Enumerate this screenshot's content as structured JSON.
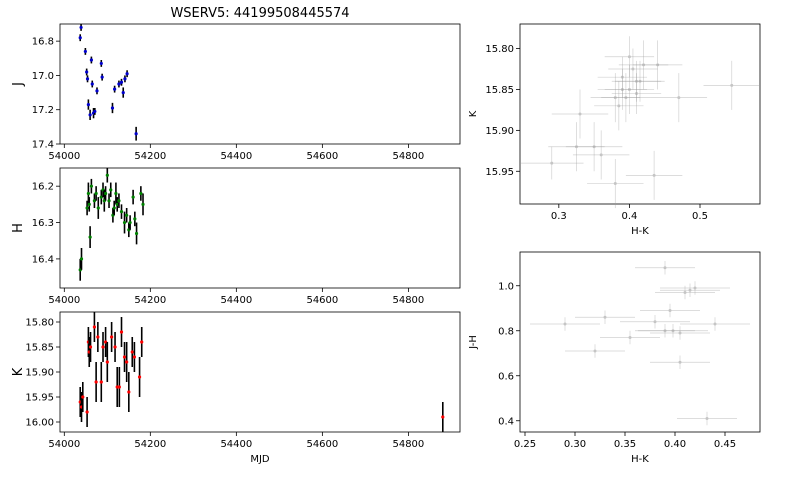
{
  "figure": {
    "title": "WSERV5: 44199508445574"
  },
  "chart_data": [
    {
      "id": "j_lc",
      "type": "scatter",
      "ylabel": "J",
      "xlabel": "",
      "color": "#0000cc",
      "xlim": [
        53990,
        54920
      ],
      "ylim": [
        17.4,
        16.7
      ],
      "y_inverted": true,
      "xticks": [
        54000,
        54200,
        54400,
        54600,
        54800
      ],
      "yticks": [
        16.8,
        17.0,
        17.2,
        17.4
      ],
      "x": [
        54039,
        54037,
        54049,
        54052,
        54054,
        54056,
        54060,
        54063,
        54065,
        54068,
        54071,
        54076,
        54086,
        54088,
        54112,
        54117,
        54127,
        54133,
        54137,
        54141,
        54146,
        54167
      ],
      "y": [
        16.72,
        16.78,
        16.86,
        16.98,
        17.02,
        17.17,
        17.23,
        16.91,
        17.05,
        17.22,
        17.21,
        17.09,
        16.93,
        17.01,
        17.19,
        17.08,
        17.05,
        17.04,
        17.1,
        17.02,
        16.99,
        17.34
      ],
      "yerr": [
        0.02,
        0.02,
        0.02,
        0.02,
        0.02,
        0.03,
        0.03,
        0.02,
        0.02,
        0.03,
        0.02,
        0.02,
        0.02,
        0.02,
        0.03,
        0.02,
        0.02,
        0.02,
        0.03,
        0.02,
        0.02,
        0.04
      ]
    },
    {
      "id": "h_lc",
      "type": "scatter",
      "ylabel": "H",
      "xlabel": "",
      "color": "#008000",
      "xlim": [
        53990,
        54920
      ],
      "ylim": [
        16.48,
        16.15
      ],
      "y_inverted": true,
      "xticks": [
        54000,
        54200,
        54400,
        54600,
        54800
      ],
      "yticks": [
        16.2,
        16.3,
        16.4
      ],
      "x": [
        54037,
        54040,
        54053,
        54056,
        54058,
        54060,
        54063,
        54070,
        54074,
        54079,
        54086,
        54090,
        54093,
        54096,
        54100,
        54104,
        54108,
        54113,
        54116,
        54120,
        54123,
        54127,
        54133,
        54140,
        54145,
        54150,
        54153,
        54160,
        54164,
        54168,
        54178,
        54183
      ],
      "y": [
        16.43,
        16.4,
        16.26,
        16.22,
        16.25,
        16.34,
        16.2,
        16.24,
        16.22,
        16.26,
        16.23,
        16.21,
        16.24,
        16.22,
        16.17,
        16.24,
        16.21,
        16.28,
        16.26,
        16.22,
        16.25,
        16.24,
        16.27,
        16.3,
        16.28,
        16.32,
        16.3,
        16.23,
        16.29,
        16.33,
        16.22,
        16.25
      ],
      "yerr": [
        0.03,
        0.03,
        0.02,
        0.03,
        0.02,
        0.03,
        0.02,
        0.02,
        0.02,
        0.03,
        0.02,
        0.02,
        0.03,
        0.02,
        0.02,
        0.02,
        0.02,
        0.02,
        0.02,
        0.03,
        0.02,
        0.02,
        0.02,
        0.03,
        0.02,
        0.02,
        0.02,
        0.02,
        0.02,
        0.03,
        0.02,
        0.03
      ]
    },
    {
      "id": "k_lc",
      "type": "scatter",
      "ylabel": "K",
      "xlabel": "MJD",
      "color": "#ff0000",
      "xlim": [
        53990,
        54920
      ],
      "ylim": [
        16.02,
        15.78
      ],
      "y_inverted": true,
      "xticks": [
        54000,
        54200,
        54400,
        54600,
        54800
      ],
      "yticks": [
        15.8,
        15.85,
        15.9,
        15.95,
        16.0
      ],
      "x": [
        54037,
        54040,
        54043,
        54053,
        54056,
        54058,
        54061,
        54070,
        54074,
        54078,
        54086,
        54090,
        54096,
        54100,
        54110,
        54118,
        54123,
        54128,
        54133,
        54140,
        54145,
        54150,
        54158,
        54163,
        54175,
        54180,
        54880
      ],
      "y": [
        15.96,
        15.97,
        15.95,
        15.98,
        15.84,
        15.86,
        15.85,
        15.81,
        15.92,
        15.83,
        15.92,
        15.85,
        15.84,
        15.88,
        15.83,
        15.85,
        15.93,
        15.93,
        15.82,
        15.87,
        15.88,
        15.94,
        15.86,
        15.87,
        15.91,
        15.84,
        15.99
      ],
      "yerr": [
        0.03,
        0.03,
        0.03,
        0.03,
        0.03,
        0.03,
        0.03,
        0.03,
        0.04,
        0.03,
        0.04,
        0.03,
        0.03,
        0.04,
        0.03,
        0.03,
        0.04,
        0.04,
        0.03,
        0.03,
        0.04,
        0.04,
        0.03,
        0.03,
        0.04,
        0.03,
        0.03
      ]
    },
    {
      "id": "k_vs_hk",
      "type": "scatter",
      "xlabel": "H-K",
      "ylabel": "K",
      "color": "#808080",
      "xlim": [
        0.245,
        0.585
      ],
      "ylim": [
        15.99,
        15.77
      ],
      "y_inverted": true,
      "xticks": [
        0.3,
        0.4,
        0.5
      ],
      "yticks": [
        15.8,
        15.85,
        15.9,
        15.95
      ],
      "x": [
        0.29,
        0.33,
        0.325,
        0.35,
        0.36,
        0.38,
        0.38,
        0.385,
        0.39,
        0.39,
        0.395,
        0.4,
        0.4,
        0.405,
        0.41,
        0.41,
        0.415,
        0.42,
        0.435,
        0.44,
        0.47,
        0.545
      ],
      "y": [
        15.94,
        15.88,
        15.92,
        15.92,
        15.93,
        15.86,
        15.965,
        15.87,
        15.835,
        15.85,
        15.86,
        15.81,
        15.85,
        15.825,
        15.84,
        15.855,
        15.84,
        15.82,
        15.955,
        15.82,
        15.86,
        15.845
      ],
      "xerr": [
        0.045,
        0.04,
        0.04,
        0.04,
        0.04,
        0.035,
        0.04,
        0.035,
        0.035,
        0.035,
        0.035,
        0.035,
        0.035,
        0.035,
        0.035,
        0.035,
        0.035,
        0.035,
        0.04,
        0.035,
        0.04,
        0.04
      ],
      "yerr": [
        0.02,
        0.03,
        0.03,
        0.03,
        0.03,
        0.03,
        0.03,
        0.03,
        0.025,
        0.025,
        0.03,
        0.025,
        0.03,
        0.025,
        0.025,
        0.025,
        0.025,
        0.03,
        0.03,
        0.03,
        0.03,
        0.03
      ]
    },
    {
      "id": "jh_vs_hk",
      "type": "scatter",
      "xlabel": "H-K",
      "ylabel": "J-H",
      "color": "#808080",
      "xlim": [
        0.245,
        0.485
      ],
      "ylim": [
        0.35,
        1.15
      ],
      "y_inverted": false,
      "xticks": [
        0.25,
        0.3,
        0.35,
        0.4,
        0.45
      ],
      "yticks": [
        0.4,
        0.6,
        0.8,
        1.0
      ],
      "x": [
        0.29,
        0.32,
        0.33,
        0.355,
        0.38,
        0.39,
        0.39,
        0.395,
        0.398,
        0.405,
        0.405,
        0.41,
        0.415,
        0.42,
        0.432,
        0.44
      ],
      "y": [
        0.83,
        0.71,
        0.86,
        0.77,
        0.84,
        0.8,
        1.08,
        0.89,
        0.8,
        0.79,
        0.66,
        0.97,
        0.98,
        0.99,
        0.41,
        0.83
      ],
      "xerr": [
        0.035,
        0.03,
        0.03,
        0.03,
        0.035,
        0.03,
        0.03,
        0.03,
        0.035,
        0.03,
        0.03,
        0.03,
        0.03,
        0.035,
        0.03,
        0.035
      ],
      "yerr": [
        0.03,
        0.03,
        0.03,
        0.03,
        0.03,
        0.03,
        0.03,
        0.03,
        0.03,
        0.03,
        0.03,
        0.03,
        0.03,
        0.03,
        0.03,
        0.03
      ]
    }
  ]
}
